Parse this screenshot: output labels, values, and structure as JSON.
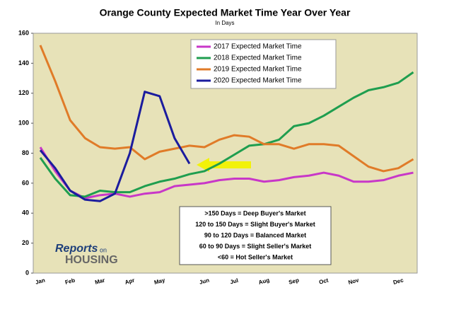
{
  "chart_data": {
    "type": "line",
    "title": "Orange County Expected Market Time Year Over Year",
    "subtitle": "In Days",
    "categories": [
      "Jan",
      null,
      "Feb",
      null,
      "Mar",
      null,
      "Apr",
      null,
      "May",
      null,
      null,
      "Jun",
      null,
      "Jul",
      null,
      "Aug",
      null,
      "Sep",
      null,
      "Oct",
      null,
      "Nov",
      null,
      null,
      "Dec",
      null
    ],
    "series": [
      {
        "name": "2017 Expected Market Time",
        "color": "#c837c8",
        "values": [
          84,
          68,
          55,
          50,
          52,
          53,
          51,
          53,
          54,
          58,
          59,
          60,
          62,
          63,
          63,
          61,
          62,
          64,
          65,
          67,
          65,
          61,
          61,
          62,
          65,
          67
        ]
      },
      {
        "name": "2018 Expected Market Time",
        "color": "#1f9e4f",
        "values": [
          77,
          63,
          52,
          51,
          55,
          54,
          54,
          58,
          61,
          63,
          66,
          68,
          73,
          79,
          85,
          86,
          89,
          98,
          100,
          105,
          111,
          117,
          122,
          124,
          127,
          134
        ]
      },
      {
        "name": "2019 Expected Market Time",
        "color": "#e07b28",
        "values": [
          152,
          128,
          102,
          90,
          84,
          83,
          84,
          76,
          81,
          83,
          85,
          84,
          89,
          92,
          91,
          86,
          86,
          83,
          86,
          86,
          85,
          78,
          71,
          68,
          70,
          76
        ]
      },
      {
        "name": "2020 Expected Market Time",
        "color": "#1b1c9e",
        "values": [
          82,
          70,
          55,
          49,
          48,
          53,
          80,
          121,
          118,
          90,
          73,
          null,
          null,
          null,
          null,
          null,
          null,
          null,
          null,
          null,
          null,
          null,
          null,
          null,
          null,
          null
        ]
      }
    ],
    "ylim": [
      0,
      160
    ],
    "yticks": [
      0,
      20,
      40,
      60,
      80,
      100,
      120,
      140,
      160
    ],
    "annotations": [
      ">150 Days  = Deep Buyer's Market",
      "120 to 150 Days  = Slight Buyer's Market",
      "90 to 120 Days  = Balanced Market",
      "60 to 90 Days  = Slight Seller's Market",
      "<60  = Hot Seller's Market"
    ],
    "watermark": [
      "Reports",
      "on",
      "HOUSING"
    ]
  }
}
